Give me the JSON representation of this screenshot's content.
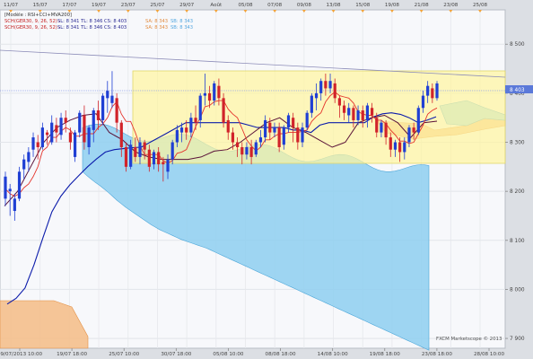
{
  "chart_data": {
    "type": "candlestick",
    "title": "",
    "y_axis": {
      "ticks": [
        8500,
        8400,
        8300,
        8200,
        8100,
        8000,
        7900
      ],
      "tick_labels": [
        "8 500",
        "8 400",
        "8 300",
        "8 200",
        "8 100",
        "8 000",
        "7 900"
      ],
      "range": [
        7880,
        8570
      ],
      "price_label": "8 403",
      "price_value": 8403
    },
    "top_axis": {
      "labels": [
        "11/07",
        "15/07",
        "17/07",
        "19/07",
        "23/07",
        "25/07",
        "29/07",
        "Août",
        "05/08",
        "07/08",
        "09/08",
        "13/08",
        "15/08",
        "19/08",
        "21/08",
        "23/08",
        "25/08"
      ]
    },
    "bottom_axis": {
      "labels": [
        "09/07/2013 10:00",
        "19/07 18:00",
        "25/07 10:00",
        "30/07 18:00",
        "05/08 10:00",
        "08/08 18:00",
        "14/08 10:00",
        "19/08 18:00",
        "23/08 18:00",
        "28/08 10:00"
      ]
    },
    "legend": {
      "model": "[Modèle : RSI+CCI+MVA200]",
      "line1_a": "SCH(GER30, 9, 26, 52) -",
      "line1_b": "SL: 8 341  TL: 8 346  CS: 8 403",
      "line1_sa": "SA: 8 343",
      "line1_sb": "SB: 8 343",
      "line2_a": "SCH(GER30, 9, 26, 52) -",
      "line2_b": "SL: 8 341  TL: 8 346  CS: 8 403",
      "line2_sa": "SA: 8 343",
      "line2_sb": "SB: 8 343"
    },
    "watermark": "FXCM Marketscope © 2013",
    "candles": [
      [
        8185,
        8230,
        8170,
        8240
      ],
      [
        8200,
        8205,
        8150,
        8215
      ],
      [
        8160,
        8185,
        8140,
        8195
      ],
      [
        8185,
        8240,
        8180,
        8250
      ],
      [
        8245,
        8265,
        8225,
        8275
      ],
      [
        8260,
        8280,
        8240,
        8290
      ],
      [
        8285,
        8310,
        8270,
        8320
      ],
      [
        8300,
        8290,
        8265,
        8315
      ],
      [
        8290,
        8330,
        8285,
        8340
      ],
      [
        8320,
        8315,
        8295,
        8325
      ],
      [
        8300,
        8340,
        8295,
        8355
      ],
      [
        8335,
        8320,
        8300,
        8350
      ],
      [
        8315,
        8350,
        8305,
        8360
      ],
      [
        8350,
        8340,
        8320,
        8365
      ],
      [
        8320,
        8300,
        8285,
        8330
      ],
      [
        8270,
        8320,
        8260,
        8325
      ],
      [
        8320,
        8360,
        8310,
        8365
      ],
      [
        8355,
        8300,
        8285,
        8375
      ],
      [
        8290,
        8330,
        8275,
        8335
      ],
      [
        8325,
        8365,
        8300,
        8370
      ],
      [
        8365,
        8345,
        8325,
        8385
      ],
      [
        8345,
        8395,
        8335,
        8400
      ],
      [
        8390,
        8405,
        8360,
        8425
      ],
      [
        8380,
        8395,
        8370,
        8445
      ],
      [
        8390,
        8340,
        8320,
        8400
      ],
      [
        8340,
        8290,
        8270,
        8345
      ],
      [
        8290,
        8250,
        8240,
        8300
      ],
      [
        8250,
        8295,
        8245,
        8305
      ],
      [
        8290,
        8270,
        8260,
        8310
      ],
      [
        8270,
        8300,
        8255,
        8310
      ],
      [
        8300,
        8285,
        8265,
        8305
      ],
      [
        8285,
        8250,
        8240,
        8295
      ],
      [
        8255,
        8280,
        8245,
        8285
      ],
      [
        8280,
        8255,
        8240,
        8290
      ],
      [
        8260,
        8255,
        8220,
        8270
      ],
      [
        8240,
        8265,
        8225,
        8275
      ],
      [
        8265,
        8300,
        8255,
        8305
      ],
      [
        8300,
        8325,
        8290,
        8335
      ],
      [
        8320,
        8330,
        8300,
        8340
      ],
      [
        8330,
        8320,
        8305,
        8345
      ],
      [
        8320,
        8350,
        8310,
        8360
      ],
      [
        8350,
        8340,
        8325,
        8375
      ],
      [
        8345,
        8395,
        8330,
        8400
      ],
      [
        8395,
        8400,
        8375,
        8440
      ],
      [
        8400,
        8385,
        8370,
        8415
      ],
      [
        8385,
        8420,
        8375,
        8425
      ],
      [
        8415,
        8390,
        8375,
        8430
      ],
      [
        8390,
        8340,
        8330,
        8400
      ],
      [
        8345,
        8320,
        8305,
        8355
      ],
      [
        8320,
        8300,
        8285,
        8330
      ],
      [
        8300,
        8290,
        8270,
        8310
      ],
      [
        8290,
        8275,
        8255,
        8300
      ],
      [
        8275,
        8290,
        8265,
        8300
      ],
      [
        8290,
        8270,
        8255,
        8305
      ],
      [
        8275,
        8300,
        8270,
        8305
      ],
      [
        8300,
        8310,
        8290,
        8325
      ],
      [
        8310,
        8345,
        8300,
        8355
      ],
      [
        8340,
        8320,
        8305,
        8350
      ],
      [
        8320,
        8330,
        8310,
        8340
      ],
      [
        8330,
        8290,
        8280,
        8340
      ],
      [
        8295,
        8330,
        8285,
        8335
      ],
      [
        8330,
        8355,
        8320,
        8360
      ],
      [
        8350,
        8330,
        8300,
        8360
      ],
      [
        8330,
        8300,
        8285,
        8340
      ],
      [
        8300,
        8330,
        8290,
        8340
      ],
      [
        8330,
        8360,
        8325,
        8365
      ],
      [
        8360,
        8395,
        8350,
        8400
      ],
      [
        8390,
        8400,
        8365,
        8420
      ],
      [
        8400,
        8425,
        8385,
        8430
      ],
      [
        8425,
        8410,
        8395,
        8440
      ],
      [
        8410,
        8425,
        8400,
        8440
      ],
      [
        8420,
        8390,
        8380,
        8430
      ],
      [
        8390,
        8375,
        8350,
        8395
      ],
      [
        8375,
        8360,
        8345,
        8385
      ],
      [
        8355,
        8370,
        8340,
        8380
      ],
      [
        8370,
        8345,
        8330,
        8375
      ],
      [
        8345,
        8365,
        8335,
        8375
      ],
      [
        8365,
        8345,
        8330,
        8375
      ],
      [
        8345,
        8375,
        8330,
        8380
      ],
      [
        8370,
        8355,
        8340,
        8380
      ],
      [
        8350,
        8320,
        8310,
        8360
      ],
      [
        8320,
        8340,
        8310,
        8345
      ],
      [
        8340,
        8310,
        8295,
        8345
      ],
      [
        8310,
        8285,
        8270,
        8320
      ],
      [
        8285,
        8300,
        8270,
        8305
      ],
      [
        8300,
        8280,
        8260,
        8310
      ],
      [
        8280,
        8300,
        8265,
        8310
      ],
      [
        8300,
        8330,
        8290,
        8335
      ],
      [
        8330,
        8320,
        8305,
        8340
      ],
      [
        8320,
        8370,
        8315,
        8375
      ],
      [
        8370,
        8395,
        8360,
        8405
      ],
      [
        8395,
        8415,
        8380,
        8425
      ],
      [
        8410,
        8390,
        8380,
        8420
      ],
      [
        8390,
        8420,
        8385,
        8425
      ]
    ],
    "cloud_a": [
      8240,
      8232,
      8225,
      8218,
      8212,
      8205,
      8198,
      8190,
      8182,
      8175,
      8168,
      8162,
      8156,
      8150,
      8144,
      8138,
      8132,
      8127,
      8122,
      8118,
      8114,
      8110,
      8106,
      8102,
      8099,
      8096,
      8093,
      8090,
      8087,
      8084,
      8080,
      8076,
      8072,
      8068,
      8064,
      8060,
      8056,
      8052,
      8048,
      8044,
      8040,
      8036,
      8032,
      8028,
      8024,
      8020,
      8016,
      8012,
      8008,
      8004,
      8000,
      7996,
      7992,
      7988,
      7984,
      7980,
      7976,
      7972,
      7968,
      7964,
      7960,
      7956,
      7952,
      7948,
      7944,
      7940,
      7936,
      7932,
      7928,
      7924,
      7920,
      7916,
      7912,
      7908,
      7904,
      7900,
      7896,
      7892,
      7888,
      7884,
      7880,
      7876
    ],
    "sl_line": [
      7970,
      7982,
      8003,
      8050,
      8105,
      8158,
      8190,
      8213,
      8232,
      8250,
      8266,
      8280,
      8285,
      8287,
      8289,
      8290,
      8300,
      8310,
      8320,
      8330,
      8340,
      8340,
      8340,
      8340,
      8340,
      8340,
      8340,
      8335,
      8330,
      8330,
      8330,
      8330,
      8325,
      8325,
      8320,
      8335,
      8340,
      8340,
      8340,
      8340,
      8340,
      8352,
      8358,
      8360,
      8357,
      8350,
      8340,
      8345,
      8352
    ],
    "mva_line": [
      8170,
      8200,
      8250,
      8300,
      8330,
      8345,
      8355,
      8358,
      8320,
      8305,
      8280,
      8270,
      8265,
      8265,
      8265,
      8270,
      8282,
      8285,
      8300,
      8320,
      8340,
      8350,
      8330,
      8320,
      8305,
      8290,
      8300,
      8340,
      8350,
      8355,
      8340,
      8310,
      8340,
      8343
    ]
  }
}
